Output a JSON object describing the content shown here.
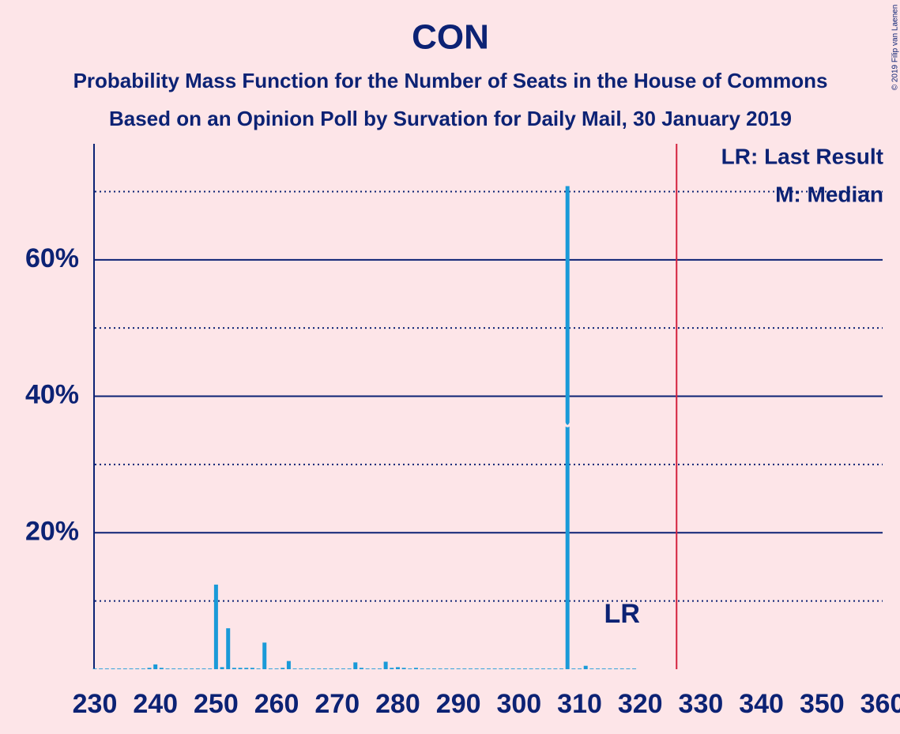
{
  "chart_data": {
    "type": "bar",
    "title": "CON",
    "subtitle": [
      "Probability Mass Function for the Number of Seats in the House of Commons",
      "Based on an Opinion Poll by Survation for Daily Mail, 30 January 2019"
    ],
    "copyright": "© 2019 Filip van Laenen",
    "legend": [
      "LR: Last Result",
      "M: Median"
    ],
    "last_result_label": "LR",
    "x": [
      230,
      231,
      232,
      233,
      234,
      235,
      236,
      237,
      238,
      239,
      240,
      241,
      242,
      243,
      244,
      245,
      246,
      247,
      248,
      249,
      250,
      251,
      252,
      253,
      254,
      255,
      256,
      257,
      258,
      259,
      260,
      261,
      262,
      263,
      264,
      265,
      266,
      267,
      268,
      269,
      270,
      271,
      272,
      273,
      274,
      275,
      276,
      277,
      278,
      279,
      280,
      281,
      282,
      283,
      284,
      285,
      286,
      287,
      288,
      289,
      290,
      291,
      292,
      293,
      294,
      295,
      296,
      297,
      298,
      299,
      300,
      301,
      302,
      303,
      304,
      305,
      306,
      307,
      308,
      309,
      310,
      311,
      312,
      313,
      314,
      315,
      316,
      317,
      318,
      319,
      320,
      321,
      322,
      323,
      324,
      325,
      326,
      327,
      328,
      329,
      330,
      331,
      332,
      333,
      334,
      335,
      336,
      337,
      338,
      339,
      340,
      341,
      342,
      343,
      344,
      345,
      346,
      347,
      348,
      349,
      350,
      351,
      352,
      353,
      354,
      355,
      356,
      357,
      358,
      359,
      360
    ],
    "values": [
      0.1,
      0.1,
      0.1,
      0.1,
      0.1,
      0.1,
      0.1,
      0.1,
      0.1,
      0.2,
      0.7,
      0.2,
      0.1,
      0.1,
      0.1,
      0.1,
      0.1,
      0.1,
      0.1,
      0.1,
      12.4,
      0.3,
      6,
      0.2,
      0.2,
      0.2,
      0.2,
      0.1,
      3.9,
      0.1,
      0.1,
      0.2,
      1.2,
      0.1,
      0.1,
      0.1,
      0.1,
      0.1,
      0.1,
      0.1,
      0.1,
      0.1,
      0.1,
      1,
      0.2,
      0.1,
      0.1,
      0.1,
      1.1,
      0.2,
      0.3,
      0.2,
      0.1,
      0.2,
      0.1,
      0.1,
      0.1,
      0.1,
      0.1,
      0.1,
      0.1,
      0.1,
      0.1,
      0.1,
      0.1,
      0.1,
      0.1,
      0.1,
      0.1,
      0.1,
      0.1,
      0.1,
      0.1,
      0.1,
      0.1,
      0.1,
      0.1,
      0.1,
      70.8,
      0.1,
      0.1,
      0.5,
      0.1,
      0.1,
      0.1,
      0.1,
      0.1,
      0.1,
      0.1,
      0.1,
      0,
      0,
      0,
      0,
      0,
      0,
      0,
      0,
      0,
      0,
      0,
      0,
      0,
      0,
      0,
      0,
      0,
      0,
      0,
      0,
      0,
      0,
      0,
      0,
      0,
      0,
      0,
      0,
      0,
      0,
      0,
      0,
      0,
      0,
      0,
      0,
      0,
      0,
      0,
      0,
      0
    ],
    "color": "#1a9ad8",
    "median": 308,
    "last_result": 317,
    "majority": 326,
    "majority_color": "#d4213d",
    "xlim": [
      230,
      360
    ],
    "xticks": [
      230,
      240,
      250,
      260,
      270,
      280,
      290,
      300,
      310,
      320,
      330,
      340,
      350,
      360
    ],
    "ylim": [
      0,
      77
    ],
    "yticks": [
      {
        "value": 20,
        "label": "20%"
      },
      {
        "value": 40,
        "label": "40%"
      },
      {
        "value": 60,
        "label": "60%"
      }
    ],
    "minor_grid": [
      10,
      30,
      50,
      70
    ]
  }
}
